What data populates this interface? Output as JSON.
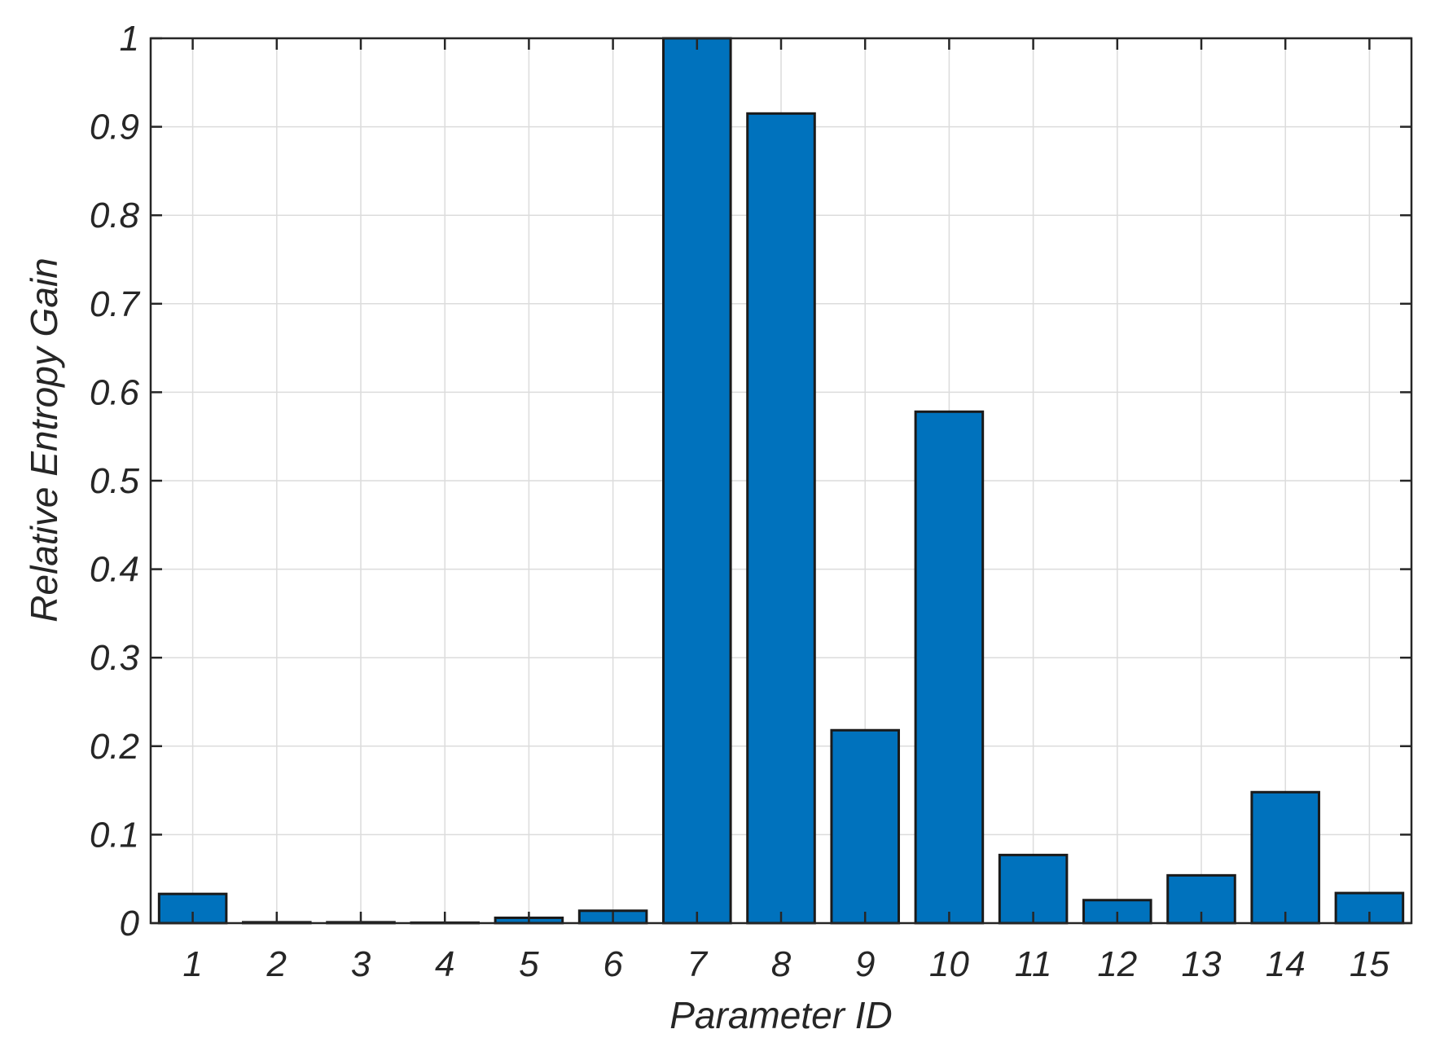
{
  "chart_data": {
    "type": "bar",
    "categories": [
      "1",
      "2",
      "3",
      "4",
      "5",
      "6",
      "7",
      "8",
      "9",
      "10",
      "11",
      "12",
      "13",
      "14",
      "15"
    ],
    "values": [
      0.033,
      0.001,
      0.001,
      0.0005,
      0.006,
      0.014,
      1.0,
      0.915,
      0.218,
      0.578,
      0.077,
      0.026,
      0.054,
      0.148,
      0.034
    ],
    "xlabel": "Parameter ID",
    "ylabel": "Relative Entropy Gain",
    "ylim": [
      0,
      1
    ],
    "yticks": [
      "0",
      "0.1",
      "0.2",
      "0.3",
      "0.4",
      "0.5",
      "0.6",
      "0.7",
      "0.8",
      "0.9",
      "1"
    ],
    "grid": true,
    "bar_color": "#0072bd",
    "edge_color": "#1a1a1a"
  }
}
